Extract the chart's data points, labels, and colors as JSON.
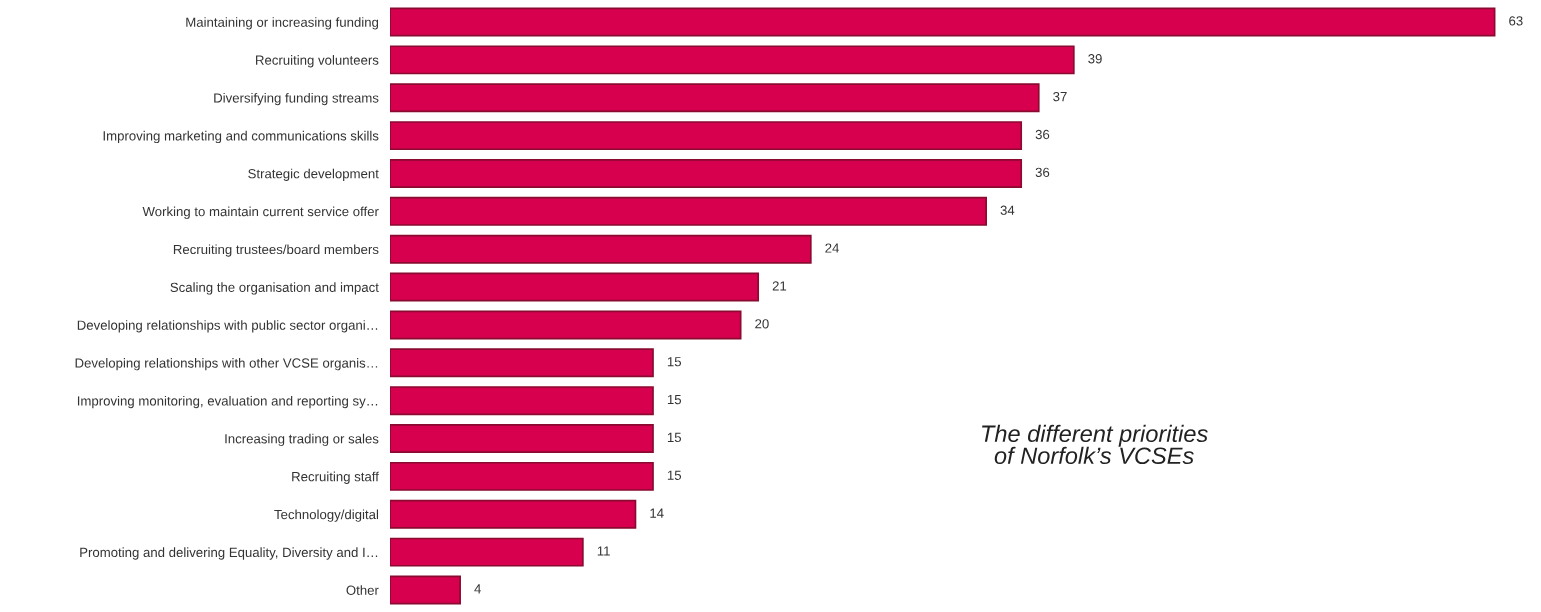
{
  "chart_data": {
    "type": "bar",
    "orientation": "horizontal",
    "title": "The different priorities\nof Norfolk’s VCSEs",
    "categories": [
      "Maintaining or increasing funding",
      "Recruiting volunteers",
      "Diversifying funding streams",
      "Improving marketing and communications skills",
      "Strategic development",
      "Working to maintain current service offer",
      "Recruiting trustees/board members",
      "Scaling the organisation and impact",
      "Developing relationships with public sector organi…",
      "Developing relationships with other VCSE organis…",
      "Improving monitoring, evaluation and reporting sy…",
      "Increasing trading or sales",
      "Recruiting staff",
      "Technology/digital",
      "Promoting and delivering Equality, Diversity and I…",
      "Other"
    ],
    "values": [
      63,
      39,
      37,
      36,
      36,
      34,
      24,
      21,
      20,
      15,
      15,
      15,
      15,
      14,
      11,
      4
    ],
    "color": "#d6004f",
    "data_labels": true,
    "grid": false,
    "legend": false
  }
}
